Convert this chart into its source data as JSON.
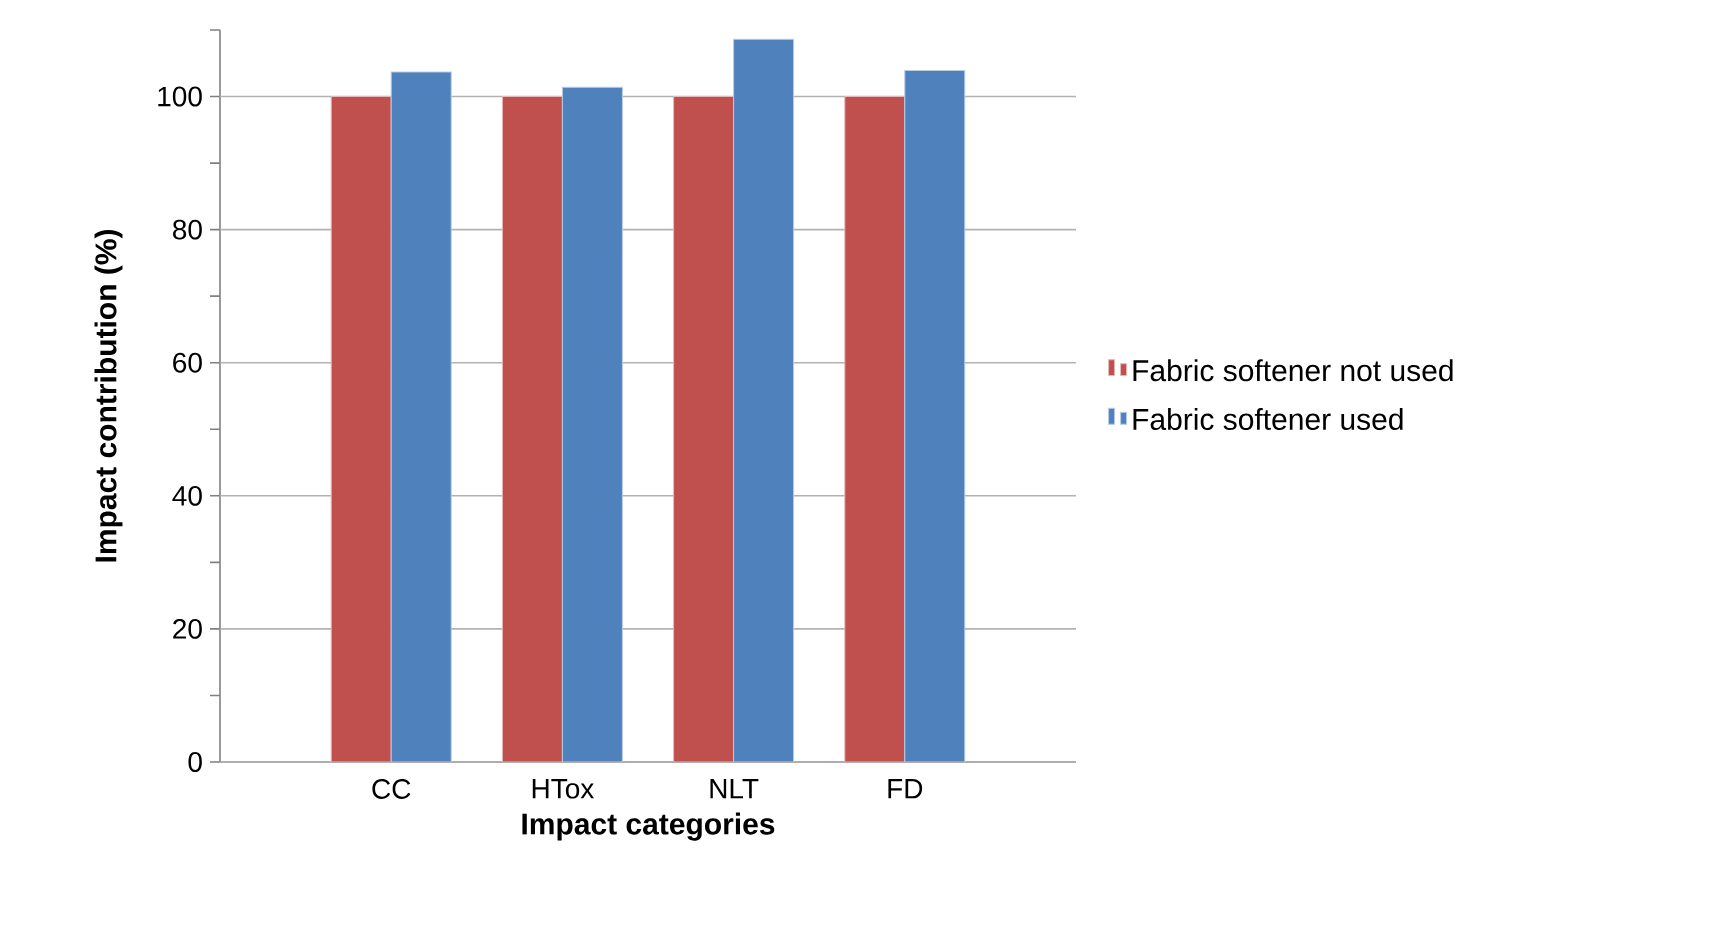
{
  "chart_data": {
    "type": "bar",
    "xlabel": "Impact categories",
    "ylabel": "Impact contribution (%)",
    "categories": [
      "CC",
      "HTox",
      "NLT",
      "FD"
    ],
    "series": [
      {
        "name": "Fabric softener not used",
        "color": "#c0504d",
        "values": [
          100,
          100,
          100,
          100
        ]
      },
      {
        "name": "Fabric softener used",
        "color": "#4f81bd",
        "values": [
          103.7,
          101.4,
          108.6,
          103.9
        ]
      }
    ],
    "ylim": [
      0,
      110
    ],
    "yticks": [
      0,
      {
        "value": 10,
        "label": null
      },
      20,
      {
        "value": 30,
        "label": null
      },
      40,
      {
        "value": 50,
        "label": null
      },
      60,
      {
        "value": 70,
        "label": null
      },
      80,
      {
        "value": 90,
        "label": null
      },
      100,
      {
        "value": 110,
        "label": null
      }
    ],
    "grid": "y",
    "legend": "right"
  }
}
